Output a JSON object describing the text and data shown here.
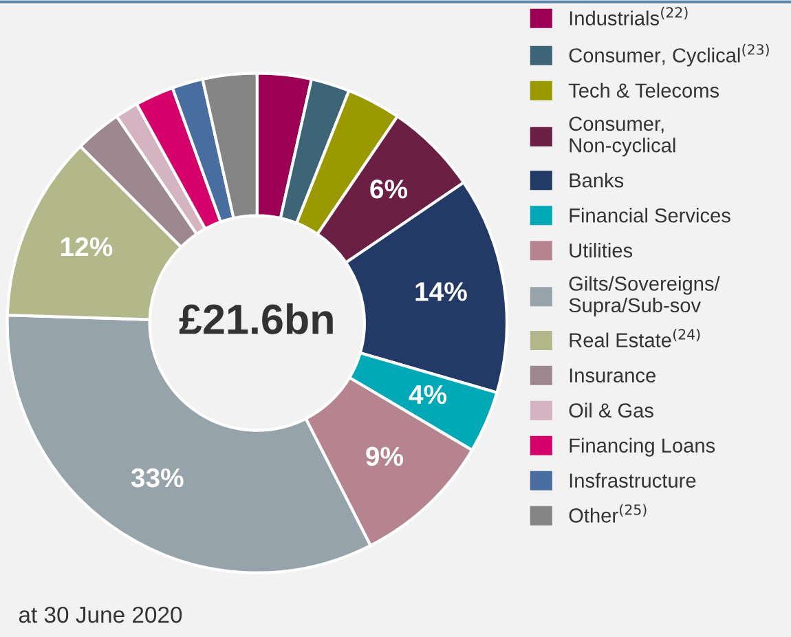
{
  "chart_data": {
    "type": "donut",
    "categories": [
      "Industrials$^{(22)}$",
      "Consumer, Cyclical$^{(23)}$",
      "Tech & Telecoms",
      "Consumer,\nNon-cyclical",
      "Banks",
      "Financial Services",
      "Utilities",
      "Gilts/Sovereigns/\nSupra/Sub-sov",
      "Real Estate$^{(24)}$",
      "Insurance",
      "Oil & Gas",
      "Financing Loans",
      "Insfrastructure",
      "Other$^{(25)}$"
    ],
    "values": [
      3.5,
      2.5,
      3.5,
      6,
      14,
      4,
      9,
      33,
      12,
      3,
      1.5,
      2.5,
      2,
      3.5
    ],
    "value_labels": [
      null,
      null,
      null,
      "6%",
      "14%",
      "4%",
      "9%",
      "33%",
      "12%",
      null,
      null,
      null,
      null,
      null
    ],
    "colors": [
      "#9b0052",
      "#3e6478",
      "#9a9a00",
      "#6b1f45",
      "#243a66",
      "#00a9b5",
      "#b5848f",
      "#96a3ab",
      "#b3b88a",
      "#9d8890",
      "#d4b4c0",
      "#d6006b",
      "#4a6da0",
      "#858585"
    ],
    "annotations": [
      "£21.6bn",
      "at 30 June 2020"
    ],
    "legend": "right"
  }
}
